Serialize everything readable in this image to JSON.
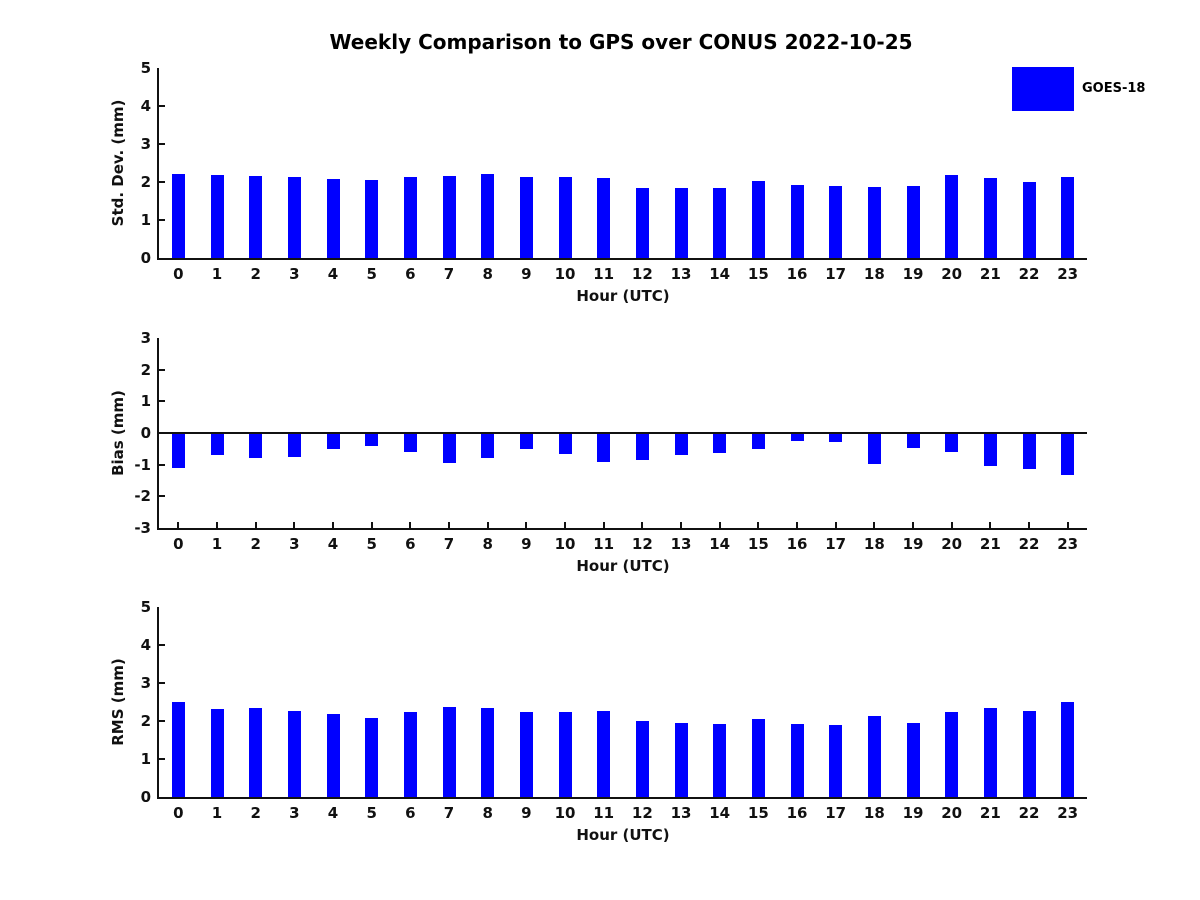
{
  "title": "Weekly Comparison to GPS over CONUS 2022-10-25",
  "legend": {
    "label": "GOES-18",
    "color": "#0000ff",
    "position": "top-right"
  },
  "colors": {
    "bar": "#0000ff",
    "axis": "#111111",
    "text": "#111111",
    "background": "#ffffff"
  },
  "chart_data": [
    {
      "type": "bar",
      "name": "std-dev",
      "ylabel": "Std. Dev. (mm)",
      "xlabel": "Hour (UTC)",
      "ylim": [
        0,
        5
      ],
      "yticks": [
        "0",
        "1",
        "2",
        "3",
        "4",
        "5"
      ],
      "ytick_values": [
        0,
        1,
        2,
        3,
        4,
        5
      ],
      "grid": false,
      "categories": [
        "0",
        "1",
        "2",
        "3",
        "4",
        "5",
        "6",
        "7",
        "8",
        "9",
        "10",
        "11",
        "12",
        "13",
        "14",
        "15",
        "16",
        "17",
        "18",
        "19",
        "20",
        "21",
        "22",
        "23"
      ],
      "series": [
        {
          "name": "GOES-18",
          "values": [
            2.22,
            2.19,
            2.17,
            2.12,
            2.09,
            2.04,
            2.12,
            2.17,
            2.2,
            2.12,
            2.12,
            2.1,
            1.83,
            1.83,
            1.83,
            2.02,
            1.92,
            1.89,
            1.88,
            1.89,
            2.18,
            2.1,
            1.99,
            2.12
          ]
        }
      ]
    },
    {
      "type": "bar",
      "name": "bias",
      "ylabel": "Bias (mm)",
      "xlabel": "Hour (UTC)",
      "ylim": [
        -3,
        3
      ],
      "yticks": [
        "-3",
        "-2",
        "-1",
        "0",
        "1",
        "2",
        "3"
      ],
      "ytick_values": [
        -3,
        -2,
        -1,
        0,
        1,
        2,
        3
      ],
      "grid": false,
      "zero_line": true,
      "categories": [
        "0",
        "1",
        "2",
        "3",
        "4",
        "5",
        "6",
        "7",
        "8",
        "9",
        "10",
        "11",
        "12",
        "13",
        "14",
        "15",
        "16",
        "17",
        "18",
        "19",
        "20",
        "21",
        "22",
        "23"
      ],
      "series": [
        {
          "name": "GOES-18",
          "values": [
            -1.12,
            -0.7,
            -0.8,
            -0.77,
            -0.5,
            -0.4,
            -0.6,
            -0.95,
            -0.79,
            -0.52,
            -0.65,
            -0.9,
            -0.84,
            -0.68,
            -0.62,
            -0.49,
            -0.25,
            -0.27,
            -0.98,
            -0.48,
            -0.61,
            -1.04,
            -1.13,
            -1.34
          ]
        }
      ]
    },
    {
      "type": "bar",
      "name": "rms",
      "ylabel": "RMS (mm)",
      "xlabel": "Hour (UTC)",
      "ylim": [
        0,
        5
      ],
      "yticks": [
        "0",
        "1",
        "2",
        "3",
        "4",
        "5"
      ],
      "ytick_values": [
        0,
        1,
        2,
        3,
        4,
        5
      ],
      "grid": false,
      "categories": [
        "0",
        "1",
        "2",
        "3",
        "4",
        "5",
        "6",
        "7",
        "8",
        "9",
        "10",
        "11",
        "12",
        "13",
        "14",
        "15",
        "16",
        "17",
        "18",
        "19",
        "20",
        "21",
        "22",
        "23"
      ],
      "series": [
        {
          "name": "GOES-18",
          "values": [
            2.51,
            2.32,
            2.33,
            2.27,
            2.18,
            2.09,
            2.23,
            2.38,
            2.35,
            2.23,
            2.23,
            2.27,
            2.0,
            1.96,
            1.92,
            2.06,
            1.93,
            1.89,
            2.13,
            1.96,
            2.24,
            2.34,
            2.27,
            2.5
          ]
        }
      ]
    }
  ]
}
